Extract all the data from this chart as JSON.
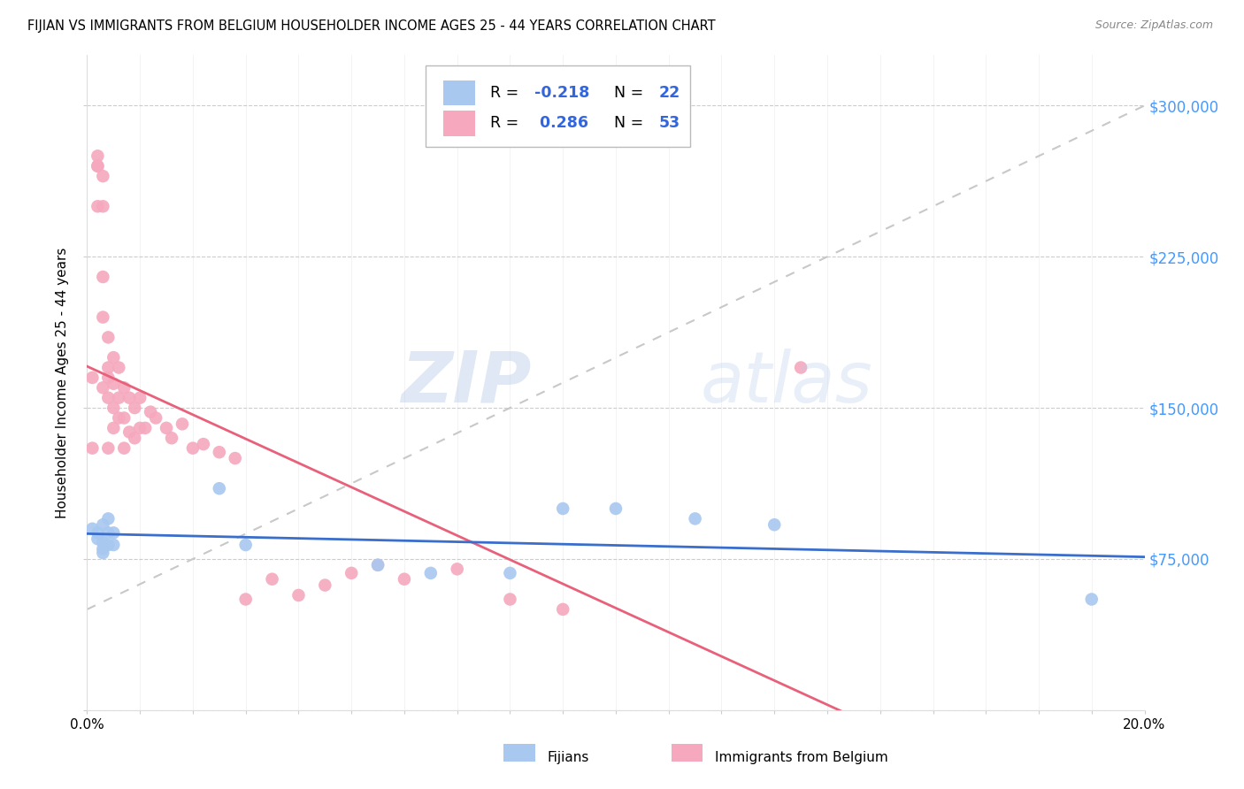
{
  "title": "FIJIAN VS IMMIGRANTS FROM BELGIUM HOUSEHOLDER INCOME AGES 25 - 44 YEARS CORRELATION CHART",
  "source": "Source: ZipAtlas.com",
  "ylabel": "Householder Income Ages 25 - 44 years",
  "xlim": [
    0,
    0.2
  ],
  "ylim": [
    0,
    325000
  ],
  "yticks": [
    0,
    75000,
    150000,
    225000,
    300000
  ],
  "ytick_labels": [
    "",
    "$75,000",
    "$150,000",
    "$225,000",
    "$300,000"
  ],
  "fijian_color": "#A8C8F0",
  "belgium_color": "#F5A8BE",
  "fijian_line_color": "#3A6ECC",
  "belgium_line_color": "#E8607A",
  "ref_line_color": "#C8C8C8",
  "background_color": "#FFFFFF",
  "watermark_zip": "ZIP",
  "watermark_atlas": "atlas",
  "fijian_x": [
    0.001,
    0.002,
    0.002,
    0.003,
    0.003,
    0.003,
    0.003,
    0.004,
    0.004,
    0.004,
    0.005,
    0.005,
    0.025,
    0.03,
    0.055,
    0.065,
    0.08,
    0.09,
    0.1,
    0.115,
    0.13,
    0.19
  ],
  "fijian_y": [
    90000,
    88000,
    85000,
    92000,
    83000,
    80000,
    78000,
    95000,
    88000,
    82000,
    88000,
    82000,
    110000,
    82000,
    72000,
    68000,
    68000,
    100000,
    100000,
    95000,
    92000,
    55000
  ],
  "belgium_x": [
    0.001,
    0.001,
    0.002,
    0.002,
    0.002,
    0.002,
    0.003,
    0.003,
    0.003,
    0.003,
    0.003,
    0.004,
    0.004,
    0.004,
    0.004,
    0.004,
    0.005,
    0.005,
    0.005,
    0.005,
    0.006,
    0.006,
    0.006,
    0.007,
    0.007,
    0.007,
    0.008,
    0.008,
    0.009,
    0.009,
    0.01,
    0.01,
    0.011,
    0.012,
    0.013,
    0.015,
    0.016,
    0.018,
    0.02,
    0.022,
    0.025,
    0.028,
    0.03,
    0.035,
    0.04,
    0.045,
    0.05,
    0.055,
    0.06,
    0.07,
    0.08,
    0.09,
    0.135
  ],
  "belgium_y": [
    165000,
    130000,
    275000,
    270000,
    270000,
    250000,
    265000,
    250000,
    215000,
    195000,
    160000,
    185000,
    170000,
    165000,
    155000,
    130000,
    175000,
    162000,
    150000,
    140000,
    170000,
    155000,
    145000,
    160000,
    145000,
    130000,
    155000,
    138000,
    150000,
    135000,
    155000,
    140000,
    140000,
    148000,
    145000,
    140000,
    135000,
    142000,
    130000,
    132000,
    128000,
    125000,
    55000,
    65000,
    57000,
    62000,
    68000,
    72000,
    65000,
    70000,
    55000,
    50000,
    170000
  ]
}
